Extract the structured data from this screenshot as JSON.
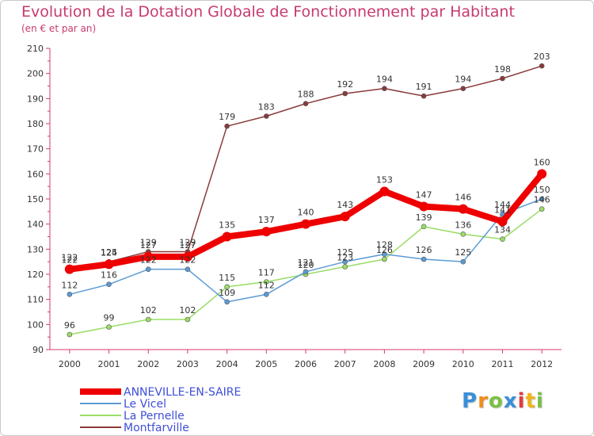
{
  "title": "Evolution de la Dotation Globale de Fonctionnement par Habitant",
  "subtitle": "(en € et par an)",
  "logo": "Proxiti",
  "chart_data": {
    "type": "line",
    "x": [
      "2000",
      "2001",
      "2002",
      "2003",
      "2004",
      "2005",
      "2006",
      "2007",
      "2008",
      "2009",
      "2010",
      "2011",
      "2012"
    ],
    "ylim": [
      90,
      210
    ],
    "yticks": [
      90,
      100,
      110,
      120,
      130,
      140,
      150,
      160,
      170,
      180,
      190,
      200,
      210
    ],
    "grid": false,
    "legend_position": "bottom-left",
    "series": [
      {
        "name": "ANNEVILLE-EN-SAIRE",
        "color": "#ee0000",
        "values": [
          122,
          124,
          127,
          127,
          135,
          137,
          140,
          143,
          153,
          147,
          146,
          141,
          160
        ]
      },
      {
        "name": "Le Vicel",
        "color": "#5b9bd5",
        "values": [
          112,
          116,
          122,
          122,
          109,
          112,
          121,
          125,
          128,
          126,
          125,
          144,
          150
        ]
      },
      {
        "name": "La Pernelle",
        "color": "#99dd66",
        "values": [
          96,
          99,
          102,
          102,
          115,
          117,
          120,
          123,
          126,
          139,
          136,
          134,
          146
        ]
      },
      {
        "name": "Montfarville",
        "color": "#8b3a3a",
        "values": [
          122,
          125,
          129,
          129,
          179,
          183,
          188,
          192,
          194,
          191,
          194,
          198,
          203
        ]
      }
    ]
  }
}
